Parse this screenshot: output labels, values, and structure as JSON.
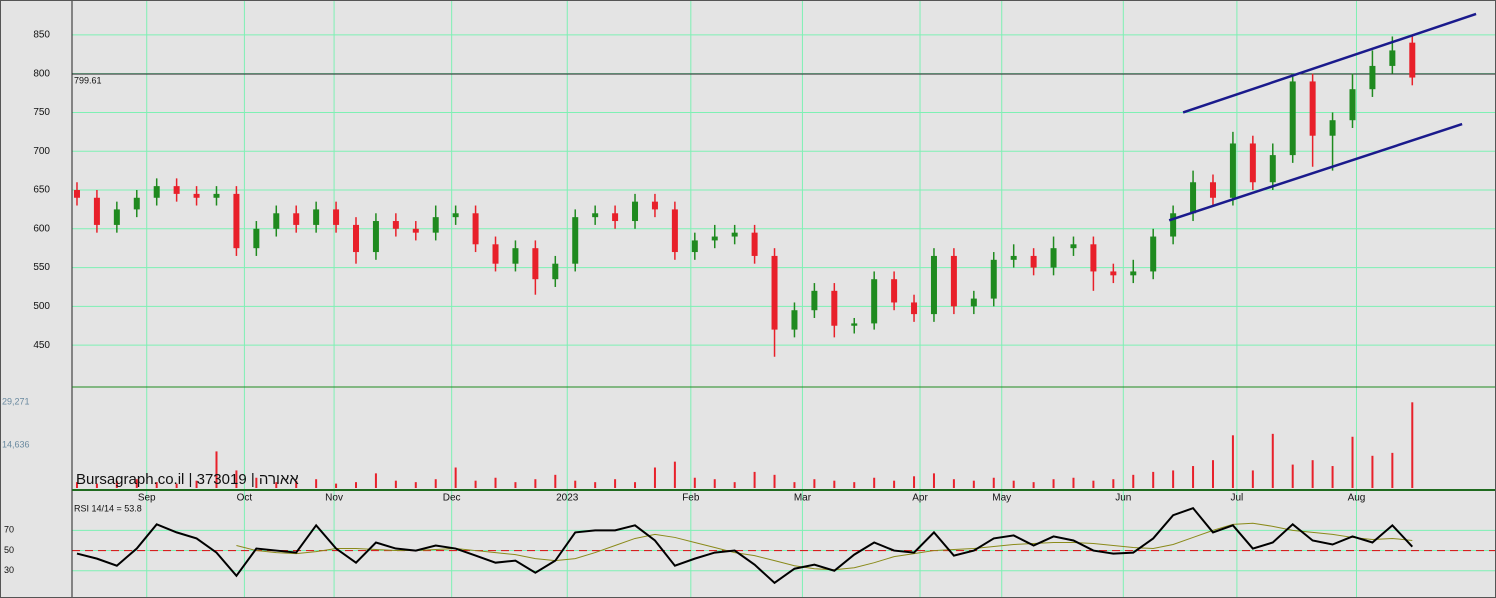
{
  "chart_data": {
    "type": "candlestick",
    "watermark": "Bursagraph.co.il | 373019 | אאורה",
    "up_color": "#1f8a1f",
    "down_color": "#e8202a",
    "x": [
      0,
      1,
      2,
      3,
      4,
      5,
      6,
      7,
      8,
      9,
      10,
      11,
      12,
      13,
      14,
      15,
      16,
      17,
      18,
      19,
      20,
      21,
      22,
      23,
      24,
      25,
      26,
      27,
      28,
      29,
      30,
      31,
      32,
      33,
      34,
      35,
      36,
      37,
      38,
      39,
      40,
      41,
      42,
      43,
      44,
      45,
      46,
      47,
      48,
      49,
      50,
      51,
      52,
      53,
      54,
      55,
      56,
      57,
      58,
      59,
      60,
      61,
      62,
      63,
      64,
      65,
      66,
      67
    ],
    "open": [
      650,
      640,
      605,
      625,
      640,
      655,
      645,
      640,
      645,
      575,
      600,
      620,
      605,
      625,
      605,
      570,
      610,
      600,
      595,
      615,
      620,
      580,
      555,
      575,
      535,
      555,
      615,
      620,
      610,
      635,
      625,
      570,
      585,
      590,
      595,
      565,
      470,
      495,
      520,
      475,
      478,
      535,
      505,
      490,
      565,
      500,
      510,
      560,
      565,
      550,
      575,
      580,
      545,
      540,
      545,
      590,
      620,
      660,
      640,
      710,
      660,
      695,
      790,
      720,
      740,
      780,
      810,
      840
    ],
    "high": [
      660,
      650,
      635,
      650,
      665,
      665,
      655,
      655,
      655,
      610,
      630,
      630,
      635,
      635,
      615,
      620,
      620,
      610,
      630,
      630,
      630,
      590,
      585,
      585,
      565,
      625,
      630,
      630,
      645,
      645,
      635,
      595,
      605,
      605,
      605,
      575,
      505,
      530,
      530,
      485,
      545,
      545,
      515,
      575,
      575,
      520,
      570,
      580,
      575,
      590,
      590,
      590,
      555,
      560,
      600,
      630,
      675,
      670,
      725,
      720,
      710,
      800,
      800,
      750,
      800,
      830,
      848,
      850
    ],
    "low": [
      630,
      595,
      595,
      615,
      630,
      635,
      630,
      630,
      565,
      565,
      590,
      595,
      595,
      595,
      555,
      560,
      590,
      585,
      585,
      605,
      570,
      545,
      545,
      515,
      525,
      545,
      605,
      600,
      600,
      615,
      560,
      560,
      575,
      580,
      555,
      435,
      460,
      485,
      460,
      465,
      470,
      495,
      480,
      480,
      490,
      490,
      500,
      550,
      540,
      540,
      565,
      520,
      530,
      530,
      535,
      580,
      610,
      630,
      630,
      650,
      650,
      685,
      680,
      675,
      730,
      770,
      800,
      785
    ],
    "close": [
      640,
      605,
      625,
      640,
      655,
      645,
      640,
      645,
      575,
      600,
      620,
      605,
      625,
      605,
      570,
      610,
      600,
      595,
      615,
      620,
      580,
      555,
      575,
      535,
      555,
      615,
      620,
      610,
      635,
      625,
      570,
      585,
      590,
      595,
      565,
      470,
      495,
      520,
      475,
      478,
      535,
      505,
      490,
      565,
      500,
      510,
      560,
      565,
      550,
      575,
      580,
      545,
      540,
      545,
      590,
      620,
      660,
      640,
      710,
      660,
      695,
      790,
      720,
      740,
      780,
      810,
      830,
      795
    ],
    "xlim": [
      -0.25,
      71.1
    ],
    "xticks": [
      {
        "value": 3.5,
        "label": "Sep"
      },
      {
        "value": 8.4,
        "label": "Oct"
      },
      {
        "value": 12.9,
        "label": "Nov"
      },
      {
        "value": 18.8,
        "label": "Dec"
      },
      {
        "value": 24.6,
        "label": "2023"
      },
      {
        "value": 30.8,
        "label": "Feb"
      },
      {
        "value": 36.4,
        "label": "Mar"
      },
      {
        "value": 42.3,
        "label": "Apr"
      },
      {
        "value": 46.4,
        "label": "May"
      },
      {
        "value": 52.5,
        "label": "Jun"
      },
      {
        "value": 58.2,
        "label": "Jul"
      },
      {
        "value": 64.2,
        "label": "Aug"
      }
    ],
    "ylim": [
      396,
      895
    ],
    "yticks": [
      450,
      500,
      550,
      600,
      650,
      700,
      750,
      800,
      850
    ],
    "grid": true,
    "last_price_line": 799.61,
    "trend_color": "#1a1a8c",
    "trend_lines": [
      {
        "x": [
          55.5,
          70.2
        ],
        "y": [
          750,
          877
        ]
      },
      {
        "x": [
          54.8,
          69.5
        ],
        "y": [
          611,
          735
        ]
      }
    ],
    "volume": {
      "color": "#e8202a",
      "values": [
        2000,
        1500,
        2500,
        3000,
        2000,
        1500,
        2500,
        12500,
        6000,
        3500,
        2000,
        2500,
        3000,
        1500,
        2000,
        5000,
        2500,
        2000,
        3000,
        7000,
        2500,
        3500,
        2000,
        3000,
        4500,
        2500,
        2000,
        3000,
        2000,
        7000,
        9000,
        3500,
        3000,
        2000,
        5500,
        4500,
        2000,
        3000,
        2500,
        2000,
        3500,
        2500,
        4000,
        5000,
        3000,
        2500,
        3500,
        2500,
        2000,
        3000,
        3500,
        2500,
        3000,
        4500,
        5500,
        6000,
        7500,
        9500,
        18000,
        6000,
        18500,
        8000,
        9500,
        7500,
        17500,
        11000,
        12000,
        29271
      ],
      "ylim": [
        0,
        34500
      ],
      "yticks": [
        {
          "value": 14636,
          "label": "14,636"
        },
        {
          "value": 29271,
          "label": "29,271"
        }
      ]
    },
    "rsi": {
      "label": "RSI 14/14 = 53.8",
      "color": "#000000",
      "ma_color": "#8a8a1a",
      "ref_color": "#d42020",
      "values": [
        47,
        42,
        35,
        52,
        76,
        68,
        62,
        48,
        25,
        52,
        50,
        48,
        75,
        52,
        38,
        58,
        52,
        50,
        55,
        52,
        45,
        38,
        40,
        28,
        40,
        68,
        70,
        70,
        75,
        60,
        35,
        42,
        48,
        50,
        36,
        18,
        32,
        36,
        30,
        46,
        58,
        50,
        48,
        68,
        45,
        50,
        62,
        65,
        55,
        64,
        60,
        50,
        47,
        48,
        62,
        85,
        92,
        68,
        75,
        52,
        58,
        76,
        60,
        56,
        64,
        58,
        75,
        53.8
      ],
      "ma": [
        null,
        null,
        null,
        null,
        null,
        null,
        null,
        null,
        55,
        50,
        48,
        47,
        49,
        52,
        52,
        51,
        50,
        50,
        51,
        52,
        50,
        48,
        46,
        42,
        40,
        42,
        48,
        55,
        62,
        66,
        63,
        58,
        53,
        48,
        45,
        40,
        35,
        32,
        31,
        33,
        38,
        44,
        47,
        50,
        51,
        52,
        54,
        56,
        57,
        58,
        58,
        57,
        55,
        53,
        52,
        56,
        63,
        70,
        76,
        77,
        74,
        70,
        68,
        66,
        63,
        61,
        62,
        60
      ],
      "ylim": [
        3,
        110
      ],
      "yticks": [
        30,
        50,
        70
      ],
      "ref_line": 50
    }
  }
}
